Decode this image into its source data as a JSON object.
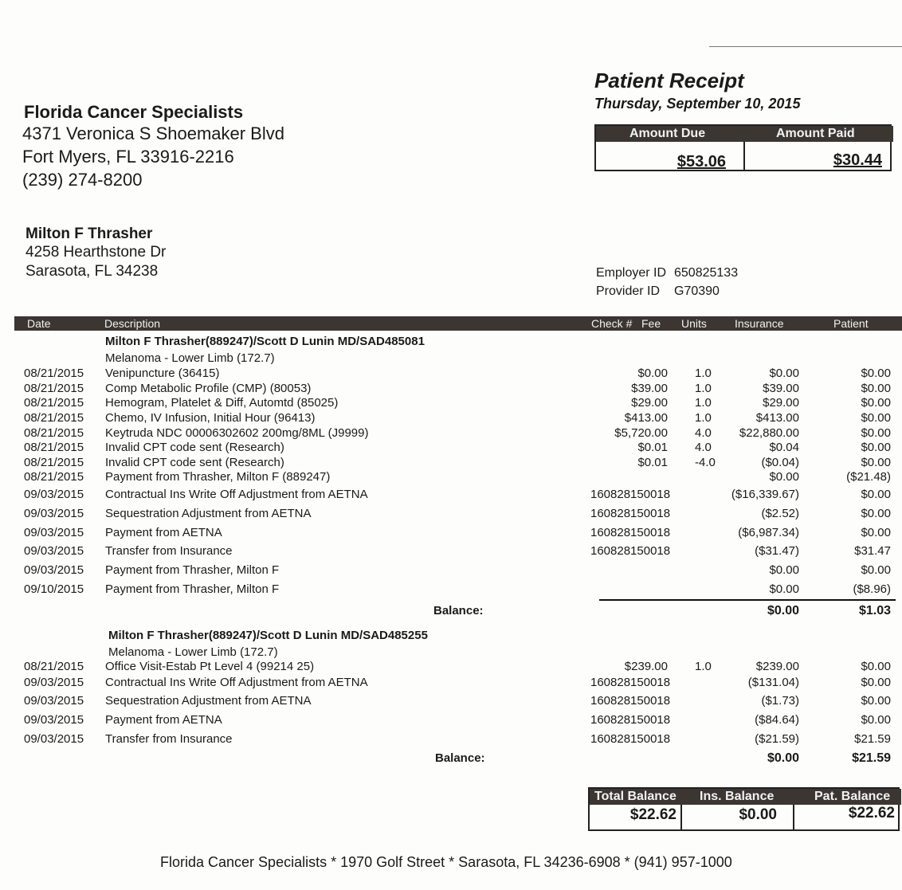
{
  "provider": {
    "name": "Florida Cancer Specialists",
    "address1": "4371 Veronica S Shoemaker Blvd",
    "address2": "Fort Myers, FL  33916-2216",
    "phone": "(239) 274-8200"
  },
  "receipt": {
    "title": "Patient Receipt",
    "date": "Thursday, September 10, 2015",
    "amount_due_label": "Amount Due",
    "amount_due": "$53.06",
    "amount_paid_label": "Amount Paid",
    "amount_paid": "$30.44"
  },
  "patient": {
    "name": "Milton F Thrasher",
    "address1": "4258 Hearthstone Dr",
    "address2": "Sarasota, FL  34238"
  },
  "ids": {
    "employer_label": "Employer ID",
    "employer_id": "650825133",
    "provider_label": "Provider ID",
    "provider_id": "G70390"
  },
  "table": {
    "headers": {
      "date": "Date",
      "description": "Description",
      "check": "Check #",
      "fee": "Fee",
      "units": "Units",
      "insurance": "Insurance",
      "patient": "Patient"
    },
    "balance_label": "Balance:",
    "groups": [
      {
        "title": "Milton F Thrasher(889247)/Scott D Lunin MD/SAD485081",
        "diagnosis": "Melanoma - Lower Limb (172.7)",
        "rows": [
          {
            "date": "08/21/2015",
            "description": "Venipuncture (36415)",
            "check": "",
            "fee": "$0.00",
            "units": "1.0",
            "insurance": "$0.00",
            "patient": "$0.00"
          },
          {
            "date": "08/21/2015",
            "description": "Comp Metabolic Profile (CMP) (80053)",
            "check": "",
            "fee": "$39.00",
            "units": "1.0",
            "insurance": "$39.00",
            "patient": "$0.00"
          },
          {
            "date": "08/21/2015",
            "description": "Hemogram, Platelet & Diff, Automtd (85025)",
            "check": "",
            "fee": "$29.00",
            "units": "1.0",
            "insurance": "$29.00",
            "patient": "$0.00"
          },
          {
            "date": "08/21/2015",
            "description": "Chemo, IV Infusion, Initial Hour (96413)",
            "check": "",
            "fee": "$413.00",
            "units": "1.0",
            "insurance": "$413.00",
            "patient": "$0.00"
          },
          {
            "date": "08/21/2015",
            "description": "Keytruda NDC 00006302602 200mg/8ML (J9999)",
            "check": "",
            "fee": "$5,720.00",
            "units": "4.0",
            "insurance": "$22,880.00",
            "patient": "$0.00"
          },
          {
            "date": "08/21/2015",
            "description": "Invalid CPT code sent (Research)",
            "check": "",
            "fee": "$0.01",
            "units": "4.0",
            "insurance": "$0.04",
            "patient": "$0.00"
          },
          {
            "date": "08/21/2015",
            "description": "Invalid CPT code sent (Research)",
            "check": "",
            "fee": "$0.01",
            "units": "-4.0",
            "insurance": "($0.04)",
            "patient": "$0.00"
          },
          {
            "date": "08/21/2015",
            "description": "Payment from Thrasher, Milton F (889247)",
            "check": "",
            "fee": "",
            "units": "",
            "insurance": "$0.00",
            "patient": "($21.48)"
          },
          {
            "date": "09/03/2015",
            "description": "Contractual Ins Write Off Adjustment from AETNA",
            "check": "160828150018",
            "fee": "",
            "units": "",
            "insurance": "($16,339.67)",
            "patient": "$0.00"
          },
          {
            "date": "09/03/2015",
            "description": "Sequestration Adjustment from AETNA",
            "check": "160828150018",
            "fee": "",
            "units": "",
            "insurance": "($2.52)",
            "patient": "$0.00"
          },
          {
            "date": "09/03/2015",
            "description": "Payment from AETNA",
            "check": "160828150018",
            "fee": "",
            "units": "",
            "insurance": "($6,987.34)",
            "patient": "$0.00"
          },
          {
            "date": "09/03/2015",
            "description": "Transfer from Insurance",
            "check": "160828150018",
            "fee": "",
            "units": "",
            "insurance": "($31.47)",
            "patient": "$31.47"
          },
          {
            "date": "09/03/2015",
            "description": "Payment from Thrasher, Milton F",
            "check": "",
            "fee": "",
            "units": "",
            "insurance": "$0.00",
            "patient": "$0.00"
          },
          {
            "date": "09/10/2015",
            "description": "Payment from Thrasher, Milton F",
            "check": "",
            "fee": "",
            "units": "",
            "insurance": "$0.00",
            "patient": "($8.96)"
          }
        ],
        "balance_insurance": "$0.00",
        "balance_patient": "$1.03"
      },
      {
        "title": "Milton F Thrasher(889247)/Scott D Lunin MD/SAD485255",
        "diagnosis": "Melanoma - Lower Limb (172.7)",
        "rows": [
          {
            "date": "08/21/2015",
            "description": "Office Visit-Estab Pt Level 4 (99214 25)",
            "check": "",
            "fee": "$239.00",
            "units": "1.0",
            "insurance": "$239.00",
            "patient": "$0.00"
          },
          {
            "date": "09/03/2015",
            "description": "Contractual Ins Write Off Adjustment from AETNA",
            "check": "160828150018",
            "fee": "",
            "units": "",
            "insurance": "($131.04)",
            "patient": "$0.00"
          },
          {
            "date": "09/03/2015",
            "description": "Sequestration Adjustment from AETNA",
            "check": "160828150018",
            "fee": "",
            "units": "",
            "insurance": "($1.73)",
            "patient": "$0.00"
          },
          {
            "date": "09/03/2015",
            "description": "Payment from AETNA",
            "check": "160828150018",
            "fee": "",
            "units": "",
            "insurance": "($84.64)",
            "patient": "$0.00"
          },
          {
            "date": "09/03/2015",
            "description": "Transfer from Insurance",
            "check": "160828150018",
            "fee": "",
            "units": "",
            "insurance": "($21.59)",
            "patient": "$21.59"
          }
        ],
        "balance_insurance": "$0.00",
        "balance_patient": "$21.59"
      }
    ]
  },
  "totals": {
    "total_label": "Total Balance",
    "total": "$22.62",
    "ins_label": "Ins. Balance",
    "ins": "$0.00",
    "pat_label": "Pat. Balance",
    "pat": "$22.62"
  },
  "footer": "Florida Cancer Specialists * 1970 Golf Street * Sarasota, FL  34236-6908 * (941) 957-1000",
  "colors": {
    "header_bar": "#3b3632",
    "paper": "#fdfdfb",
    "ink": "#1a1a1a"
  }
}
